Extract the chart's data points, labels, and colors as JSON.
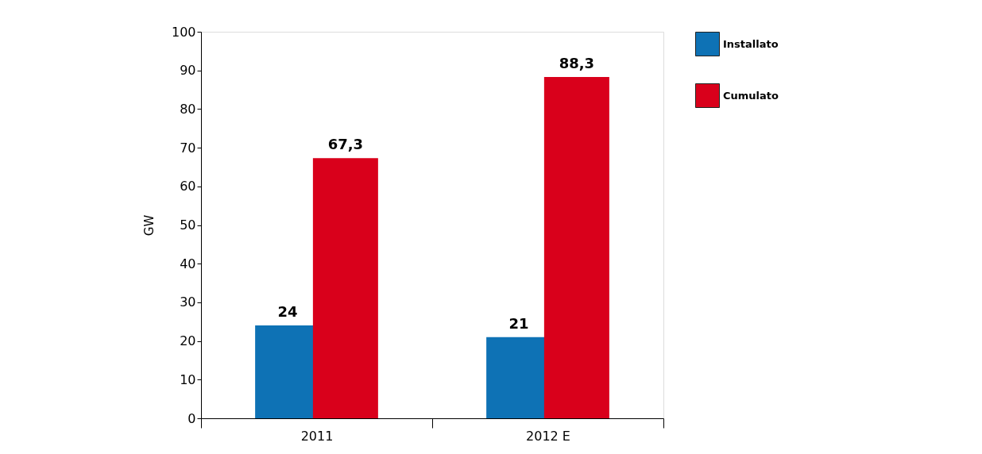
{
  "chart_data": {
    "type": "bar",
    "ylabel": "GW",
    "categories": [
      "2011",
      "2012 E"
    ],
    "series": [
      {
        "name": "Installato",
        "color": "#0e72b5",
        "values": [
          24,
          21
        ],
        "value_labels": [
          "24",
          "21"
        ]
      },
      {
        "name": "Cumulato",
        "color": "#d9001b",
        "values": [
          67.3,
          88.3
        ],
        "value_labels": [
          "67,3",
          "88,3"
        ]
      }
    ],
    "ylim": [
      0,
      100
    ],
    "yticks": [
      0,
      10,
      20,
      30,
      40,
      50,
      60,
      70,
      80,
      90,
      100
    ],
    "grid": false,
    "legend": "right"
  }
}
